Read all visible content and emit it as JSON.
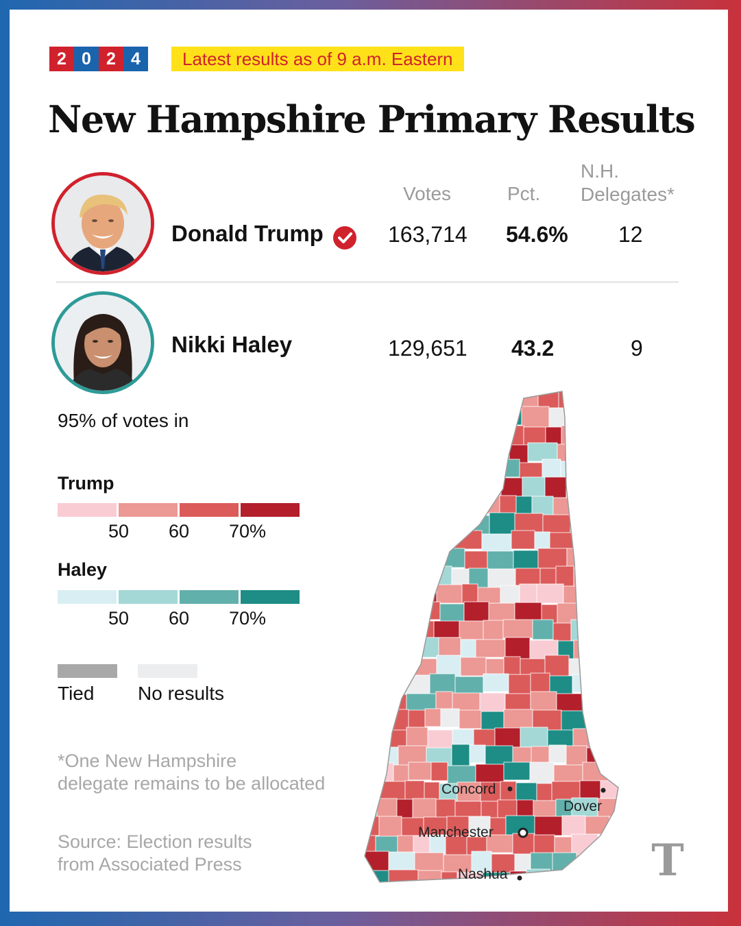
{
  "header": {
    "year_digits": [
      "2",
      "0",
      "2",
      "4"
    ],
    "banner": "Latest results as of 9 a.m. Eastern",
    "title": "New Hampshire Primary Results"
  },
  "columns": {
    "votes": "Votes",
    "pct": "Pct.",
    "delegates_line1": "N.H.",
    "delegates_line2": "Delegates*"
  },
  "candidates": [
    {
      "name": "Donald Trump",
      "votes": "163,714",
      "pct": "54.6%",
      "delegates": "12",
      "winner": true,
      "color": "#d0222d"
    },
    {
      "name": "Nikki Haley",
      "votes": "129,651",
      "pct": "43.2",
      "delegates": "9",
      "winner": false,
      "color": "#2e9b97"
    }
  ],
  "reporting": "95% of votes in",
  "legend": {
    "trump": {
      "label": "Trump",
      "colors": [
        "#f9ccd3",
        "#ec9894",
        "#db5b5a",
        "#b31f2b"
      ],
      "ticks": [
        "50",
        "60",
        "70%"
      ]
    },
    "haley": {
      "label": "Haley",
      "colors": [
        "#d8eef3",
        "#a3d8d6",
        "#62b0ab",
        "#1d8d86"
      ],
      "ticks": [
        "50",
        "60",
        "70%"
      ]
    },
    "tied": {
      "label": "Tied",
      "color": "#a8a8a8"
    },
    "no_results": {
      "label": "No results",
      "color": "#ecedef"
    }
  },
  "footnote": [
    "*One New Hampshire",
    "delegate remains to be allocated"
  ],
  "source": [
    "Source: Election results",
    "from Associated Press"
  ],
  "map": {
    "cities": [
      "Concord",
      "Dover",
      "Manchester",
      "Nashua"
    ]
  },
  "icons": {
    "winner": "check-circle-icon",
    "publisher": "nyt-logo-icon"
  }
}
